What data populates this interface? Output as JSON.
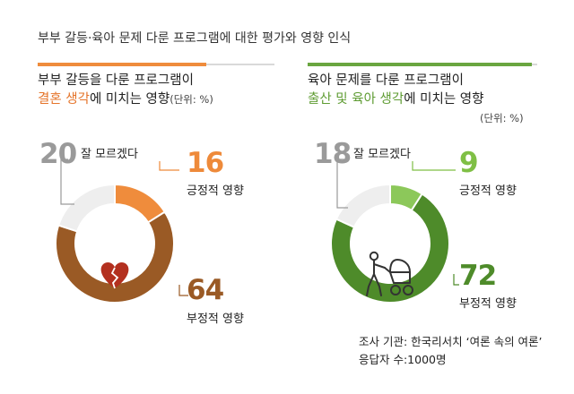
{
  "header": {
    "title": "부부 갈등·육아 문제 다룬 프로그램에 대한 평가와 영향 인식"
  },
  "colors": {
    "orange_light": "#ef8c3c",
    "brown": "#9a5a25",
    "gray_light": "#eeeeee",
    "green_light": "#8cc85a",
    "green_dark": "#4e8b2a",
    "num_gray": "#9a9a9a",
    "num_orange": "#ee8a3a",
    "num_brown": "#9a5a25",
    "num_green_light": "#7fbf45",
    "num_green_dark": "#4e8b2a"
  },
  "left_panel": {
    "title_line1": "부부 갈등을 다룬 프로그램이",
    "title_hl": "결혼 생각",
    "title_rest": "에 미치는 영향",
    "unit": "(단위: %)",
    "icon": "broken-heart-icon"
  },
  "right_panel": {
    "title_line1": "육아 문제를 다룬 프로그램이",
    "title_hl": "출산 및 육아 생각",
    "title_rest": "에 미치는 영향",
    "unit": "(단위: %)",
    "icon": "parent-with-stroller-icon"
  },
  "source": {
    "line1": "조사 기관: 한국리서치 ‘여론 속의 여론’",
    "line2": "응답자 수:1000명"
  },
  "chart_data": [
    {
      "type": "pie",
      "title": "부부 갈등을 다룬 프로그램이 결혼 생각에 미치는 영향",
      "unit": "%",
      "categories": [
        "긍정적 영향",
        "부정적 영향",
        "잘 모르겠다"
      ],
      "values": [
        16,
        64,
        20
      ],
      "value_labels": [
        "16",
        "64",
        "20"
      ],
      "colors": [
        "#ef8c3c",
        "#9a5a25",
        "#eeeeee"
      ]
    },
    {
      "type": "pie",
      "title": "육아 문제를 다룬 프로그램이 출산 및 육아 생각에 미치는 영향",
      "unit": "%",
      "categories": [
        "긍정적 영향",
        "부정적 영향",
        "잘 모르겠다"
      ],
      "values": [
        9,
        72,
        18
      ],
      "value_labels": [
        "9",
        "72",
        "18"
      ],
      "colors": [
        "#8cc85a",
        "#4e8b2a",
        "#eeeeee"
      ]
    }
  ]
}
